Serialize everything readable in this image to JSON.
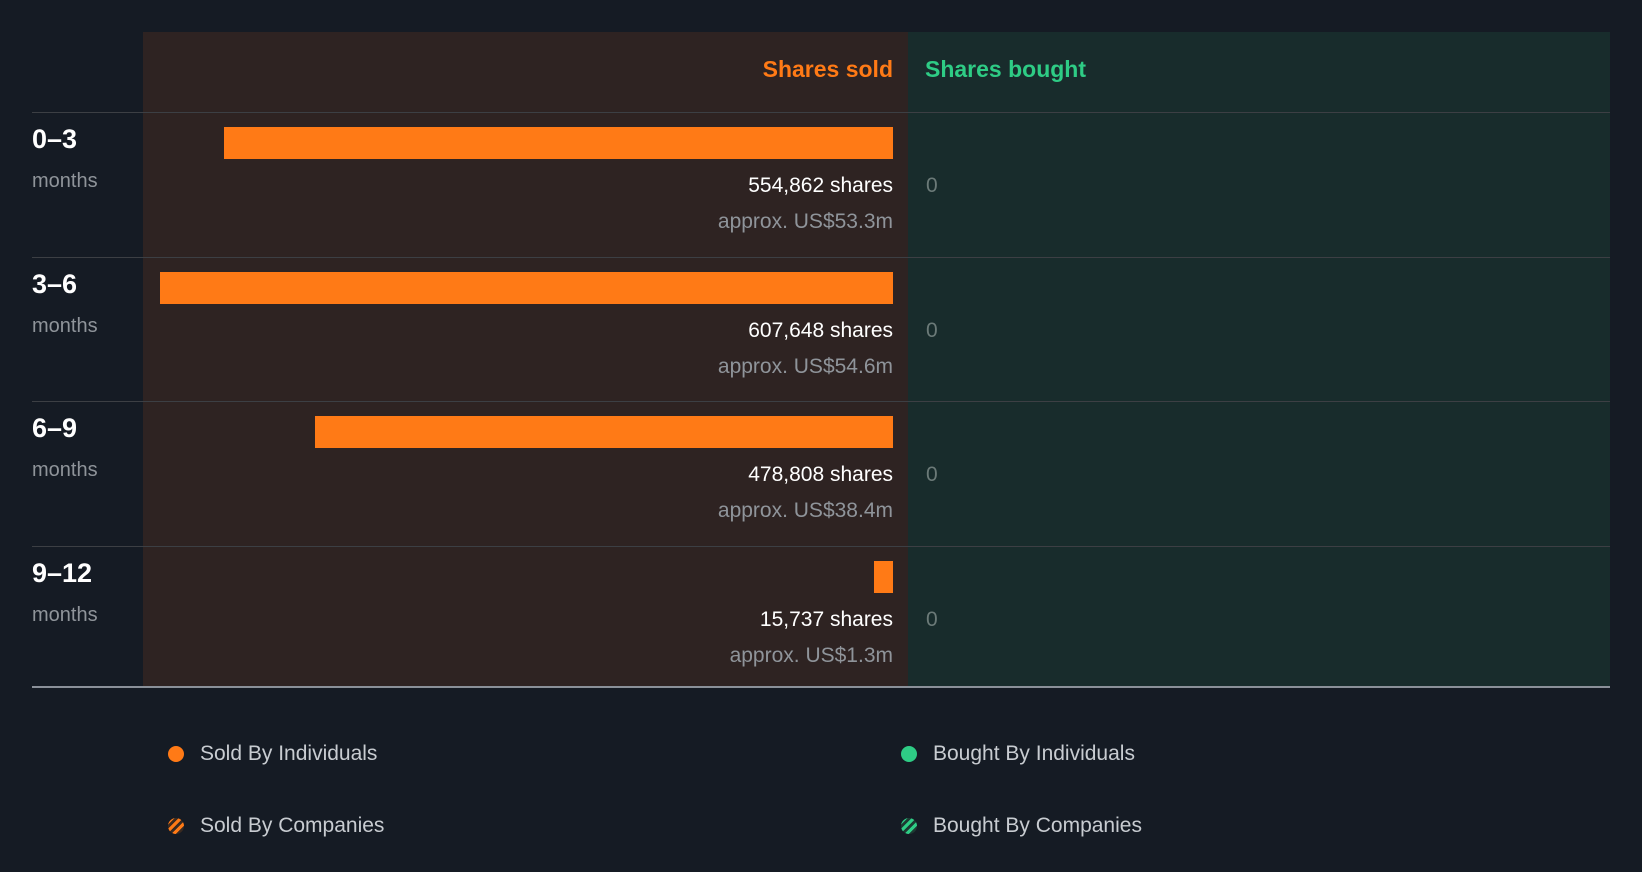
{
  "chart_data": {
    "type": "bar",
    "orientation": "horizontal",
    "columns": {
      "sold": "Shares sold",
      "bought": "Shares bought"
    },
    "categories": [
      {
        "period": "0–3",
        "unit": "months"
      },
      {
        "period": "3–6",
        "unit": "months"
      },
      {
        "period": "6–9",
        "unit": "months"
      },
      {
        "period": "9–12",
        "unit": "months"
      }
    ],
    "series": [
      {
        "name": "Shares sold",
        "values": [
          554862,
          607648,
          478808,
          15737
        ],
        "labels": [
          "554,862 shares",
          "607,648 shares",
          "478,808 shares",
          "15,737 shares"
        ],
        "approx": [
          "approx. US$53.3m",
          "approx. US$54.6m",
          "approx. US$38.4m",
          "approx. US$1.3m"
        ]
      },
      {
        "name": "Shares bought",
        "values": [
          0,
          0,
          0,
          0
        ],
        "labels": [
          "0",
          "0",
          "0",
          "0"
        ]
      }
    ],
    "max": 607648,
    "legend": [
      {
        "label": "Sold By Individuals",
        "color": "#ff7a16",
        "style": "solid"
      },
      {
        "label": "Bought By Individuals",
        "color": "#2ecc85",
        "style": "solid"
      },
      {
        "label": "Sold By Companies",
        "color": "#ff7a16",
        "style": "striped"
      },
      {
        "label": "Bought By Companies",
        "color": "#2ecc85",
        "style": "striped"
      }
    ],
    "legend_placement": "bottom"
  }
}
